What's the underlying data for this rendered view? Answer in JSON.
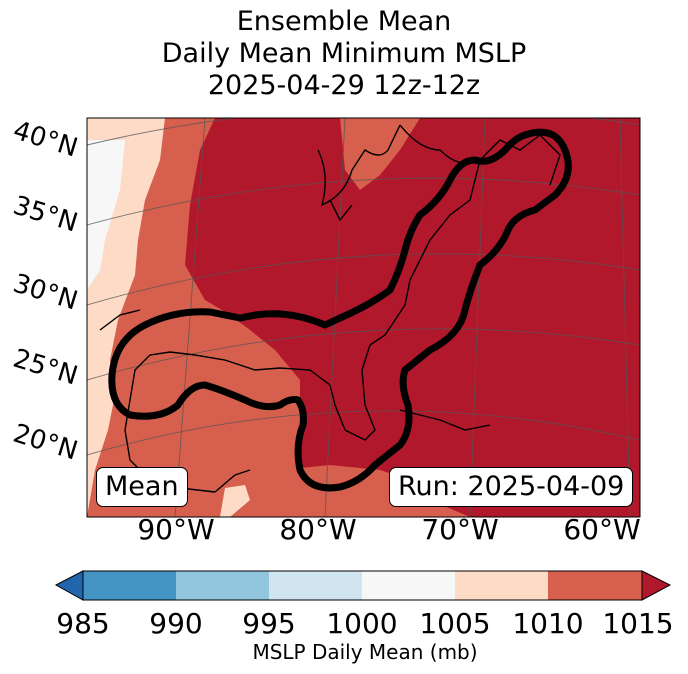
{
  "title": {
    "line1": "Ensemble Mean",
    "line2": "Daily Mean Minimum MSLP",
    "line3": "2025-04-29 12z-12z"
  },
  "map": {
    "lat_labels": [
      "40°N",
      "35°N",
      "30°N",
      "25°N",
      "20°N"
    ],
    "lon_labels": [
      "90°W",
      "80°W",
      "70°W",
      "60°W"
    ],
    "badge_left": "Mean",
    "badge_right": "Run: 2025-04-09",
    "contour_color": "#000000"
  },
  "colorbar": {
    "label": "MSLP Daily Mean (mb)",
    "ticks": [
      "985",
      "990",
      "995",
      "1000",
      "1005",
      "1010",
      "1015"
    ],
    "colors": [
      "#4393c3",
      "#92c5de",
      "#d1e5f0",
      "#f7f7f7",
      "#fddbc7",
      "#d6604d",
      "#b2182b"
    ],
    "under_color": "#2166ac",
    "over_color": "#b2182b"
  }
}
